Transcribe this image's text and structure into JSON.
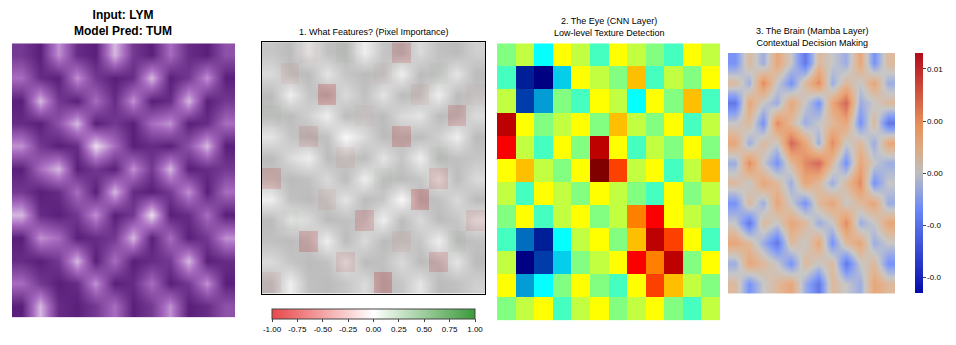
{
  "chart_data": [
    {
      "type": "image",
      "title": "Input: LYM",
      "subtitle": "Model Pred: TUM",
      "tick_labels": false,
      "xlim": [
        -0.5,
        11.5
      ],
      "ylim": [
        11.5,
        -0.5
      ],
      "cells": [
        [
          0.8,
          0.9,
          0.5,
          0.85,
          0.9,
          0.4,
          0.8,
          0.9,
          0.6,
          0.85,
          0.9,
          0.7
        ],
        [
          0.6,
          0.85,
          0.9,
          0.5,
          0.8,
          0.9,
          0.85,
          0.4,
          0.9,
          0.8,
          0.5,
          0.9
        ],
        [
          0.9,
          0.4,
          0.8,
          0.9,
          0.6,
          0.85,
          0.5,
          0.9,
          0.85,
          0.4,
          0.9,
          0.8
        ],
        [
          0.85,
          0.9,
          0.7,
          0.4,
          0.9,
          0.8,
          0.9,
          0.6,
          0.5,
          0.9,
          0.85,
          0.6
        ],
        [
          0.5,
          0.8,
          0.9,
          0.85,
          0.3,
          0.6,
          0.9,
          0.85,
          0.9,
          0.7,
          0.4,
          0.9
        ],
        [
          0.9,
          0.6,
          0.4,
          0.9,
          0.8,
          0.9,
          0.5,
          0.8,
          0.4,
          0.9,
          0.85,
          0.8
        ],
        [
          0.8,
          0.9,
          0.85,
          0.6,
          0.9,
          0.4,
          0.85,
          0.9,
          0.8,
          0.5,
          0.9,
          0.6
        ],
        [
          0.4,
          0.85,
          0.9,
          0.8,
          0.5,
          0.9,
          0.8,
          0.3,
          0.9,
          0.85,
          0.6,
          0.9
        ],
        [
          0.9,
          0.5,
          0.6,
          0.9,
          0.85,
          0.8,
          0.4,
          0.9,
          0.6,
          0.9,
          0.8,
          0.5
        ],
        [
          0.85,
          0.9,
          0.8,
          0.4,
          0.9,
          0.6,
          0.9,
          0.85,
          0.8,
          0.4,
          0.9,
          0.85
        ],
        [
          0.6,
          0.8,
          0.9,
          0.85,
          0.5,
          0.9,
          0.85,
          0.6,
          0.9,
          0.8,
          0.5,
          0.9
        ],
        [
          0.9,
          0.4,
          0.85,
          0.9,
          0.8,
          0.6,
          0.9,
          0.8,
          0.5,
          0.9,
          0.85,
          0.7
        ]
      ]
    },
    {
      "type": "heatmap",
      "title": "1. What Features? (Pixel Importance)",
      "tick_labels": false,
      "xlim": [
        -0.5,
        11.5
      ],
      "ylim": [
        11.5,
        -0.5
      ],
      "cells": [
        [
          0,
          0,
          -0.05,
          0,
          0.05,
          0,
          0,
          -0.3,
          0,
          0,
          0,
          0
        ],
        [
          0,
          -0.1,
          0,
          0,
          0,
          0,
          -0.05,
          0,
          0,
          0.05,
          0,
          0
        ],
        [
          0,
          0,
          0,
          -0.4,
          0,
          0,
          0,
          0,
          -0.1,
          0,
          0,
          -0.05
        ],
        [
          0.05,
          0,
          0,
          0,
          0,
          -0.05,
          0,
          0,
          0,
          0,
          -0.3,
          0
        ],
        [
          0,
          0,
          -0.2,
          0,
          0,
          0,
          0,
          -0.35,
          0,
          0,
          0,
          0
        ],
        [
          0,
          0,
          0,
          0,
          -0.1,
          0,
          0,
          0,
          0,
          0.05,
          0,
          0
        ],
        [
          -0.3,
          0,
          0,
          0,
          0,
          0,
          0.05,
          0,
          0,
          -0.25,
          0,
          0
        ],
        [
          0,
          0,
          0,
          -0.1,
          0,
          0,
          0,
          0,
          -0.4,
          0,
          0,
          0
        ],
        [
          0,
          0.05,
          0,
          0,
          0,
          -0.3,
          0,
          0,
          0,
          0,
          0,
          -0.2
        ],
        [
          0,
          0,
          -0.35,
          0,
          0,
          0,
          0,
          -0.1,
          0,
          0,
          0.05,
          0
        ],
        [
          0,
          0,
          0,
          0,
          -0.2,
          0,
          0,
          0,
          0,
          -0.3,
          0,
          0
        ],
        [
          -0.1,
          0,
          0,
          0,
          0,
          0,
          -0.4,
          0,
          0,
          0,
          0,
          0
        ]
      ],
      "colorbar": {
        "range": [
          -1,
          1
        ],
        "ticks": [
          {
            "value": -1,
            "label": "-1.00"
          },
          {
            "value": -0.75,
            "label": "-0.75"
          },
          {
            "value": -0.5,
            "label": "-0.50"
          },
          {
            "value": -0.25,
            "label": "-0.25"
          },
          {
            "value": 0,
            "label": "0.00"
          },
          {
            "value": 0.25,
            "label": "0.25"
          },
          {
            "value": 0.5,
            "label": "0.50"
          },
          {
            "value": 0.75,
            "label": "0.75"
          },
          {
            "value": 1,
            "label": "1.00"
          }
        ]
      }
    },
    {
      "type": "heatmap",
      "title": "2. The Eye (CNN Layer)",
      "subtitle": "Low-level Texture Detection",
      "tick_labels": false,
      "xlim": [
        -0.5,
        11.5
      ],
      "ylim": [
        11.5,
        -0.5
      ],
      "cells": [
        [
          0.5,
          0.55,
          0.4,
          0.6,
          0.55,
          0.45,
          0.6,
          0.55,
          0.5,
          0.45,
          0.6,
          0.55
        ],
        [
          0.45,
          0.15,
          0.1,
          0.35,
          0.6,
          0.55,
          0.5,
          0.65,
          0.45,
          0.55,
          0.5,
          0.6
        ],
        [
          0.55,
          0.2,
          0.3,
          0.5,
          0.45,
          0.6,
          0.55,
          0.4,
          0.6,
          0.5,
          0.65,
          0.45
        ],
        [
          0.85,
          0.6,
          0.5,
          0.55,
          0.6,
          0.5,
          0.65,
          0.55,
          0.5,
          0.6,
          0.45,
          0.55
        ],
        [
          0.8,
          0.55,
          0.45,
          0.6,
          0.5,
          0.85,
          0.6,
          0.45,
          0.55,
          0.5,
          0.6,
          0.5
        ],
        [
          0.6,
          0.65,
          0.55,
          0.5,
          0.6,
          0.9,
          0.75,
          0.55,
          0.6,
          0.45,
          0.55,
          0.65
        ],
        [
          0.55,
          0.45,
          0.6,
          0.55,
          0.5,
          0.6,
          0.55,
          0.5,
          0.45,
          0.6,
          0.5,
          0.55
        ],
        [
          0.5,
          0.6,
          0.45,
          0.55,
          0.6,
          0.5,
          0.55,
          0.7,
          0.8,
          0.6,
          0.55,
          0.5
        ],
        [
          0.45,
          0.25,
          0.15,
          0.4,
          0.55,
          0.6,
          0.5,
          0.65,
          0.85,
          0.75,
          0.6,
          0.45
        ],
        [
          0.55,
          0.1,
          0.2,
          0.35,
          0.5,
          0.55,
          0.6,
          0.8,
          0.7,
          0.85,
          0.5,
          0.6
        ],
        [
          0.6,
          0.3,
          0.4,
          0.5,
          0.6,
          0.5,
          0.45,
          0.6,
          0.75,
          0.65,
          0.55,
          0.5
        ],
        [
          0.5,
          0.55,
          0.6,
          0.45,
          0.55,
          0.6,
          0.5,
          0.55,
          0.6,
          0.5,
          0.45,
          0.55
        ]
      ]
    },
    {
      "type": "heatmap",
      "title": "3. The Brain (Mamba Layer)",
      "subtitle": "Contextual Decision Making",
      "tick_labels": false,
      "xlim": [
        -0.5,
        11.5
      ],
      "ylim": [
        11.5,
        -0.5
      ],
      "cells": [
        [
          -0.004,
          0.002,
          -0.002,
          0.004,
          0.0,
          -0.006,
          0.002,
          0.0,
          -0.002,
          0.004,
          -0.004,
          0.002
        ],
        [
          0.002,
          -0.002,
          0.006,
          0.0,
          -0.004,
          0.002,
          0.006,
          -0.002,
          0.002,
          0.0,
          0.004,
          -0.002
        ],
        [
          -0.006,
          0.004,
          0.0,
          -0.002,
          0.004,
          0.0,
          -0.004,
          0.004,
          0.008,
          -0.002,
          0.0,
          0.002
        ],
        [
          0.0,
          0.002,
          -0.004,
          0.006,
          0.002,
          -0.002,
          0.0,
          0.002,
          0.004,
          -0.004,
          0.002,
          -0.006
        ],
        [
          0.004,
          -0.002,
          0.002,
          0.0,
          0.008,
          0.004,
          -0.002,
          0.006,
          0.0,
          0.002,
          -0.002,
          0.004
        ],
        [
          -0.002,
          0.006,
          0.0,
          -0.004,
          0.002,
          0.006,
          0.008,
          0.002,
          -0.004,
          0.004,
          0.0,
          -0.002
        ],
        [
          0.002,
          0.0,
          0.004,
          0.002,
          -0.002,
          0.004,
          0.002,
          -0.002,
          0.002,
          0.006,
          -0.004,
          0.0
        ],
        [
          -0.004,
          0.002,
          -0.002,
          0.004,
          0.0,
          -0.004,
          0.002,
          0.004,
          0.0,
          0.002,
          0.004,
          -0.002
        ],
        [
          0.0,
          -0.006,
          0.002,
          0.0,
          0.004,
          0.002,
          -0.002,
          0.0,
          0.006,
          -0.002,
          0.0,
          0.004
        ],
        [
          0.004,
          0.002,
          -0.002,
          -0.006,
          0.002,
          0.0,
          0.004,
          -0.004,
          0.002,
          0.004,
          -0.002,
          0.0
        ],
        [
          -0.002,
          0.004,
          0.002,
          0.0,
          -0.004,
          0.002,
          0.0,
          0.002,
          -0.006,
          0.0,
          0.002,
          -0.004
        ],
        [
          0.002,
          -0.004,
          0.0,
          0.002,
          0.004,
          -0.002,
          -0.006,
          0.002,
          0.0,
          -0.002,
          0.004,
          0.002
        ]
      ],
      "colorbar": {
        "range": [
          -0.0115,
          0.0115
        ],
        "ticks": [
          {
            "value": 0.01,
            "label": "0.01"
          },
          {
            "value": 0.005,
            "label": "0.00"
          },
          {
            "value": 0,
            "label": "0.00"
          },
          {
            "value": -0.005,
            "label": "-0.0"
          },
          {
            "value": -0.01,
            "label": "-0.0"
          }
        ]
      }
    }
  ]
}
